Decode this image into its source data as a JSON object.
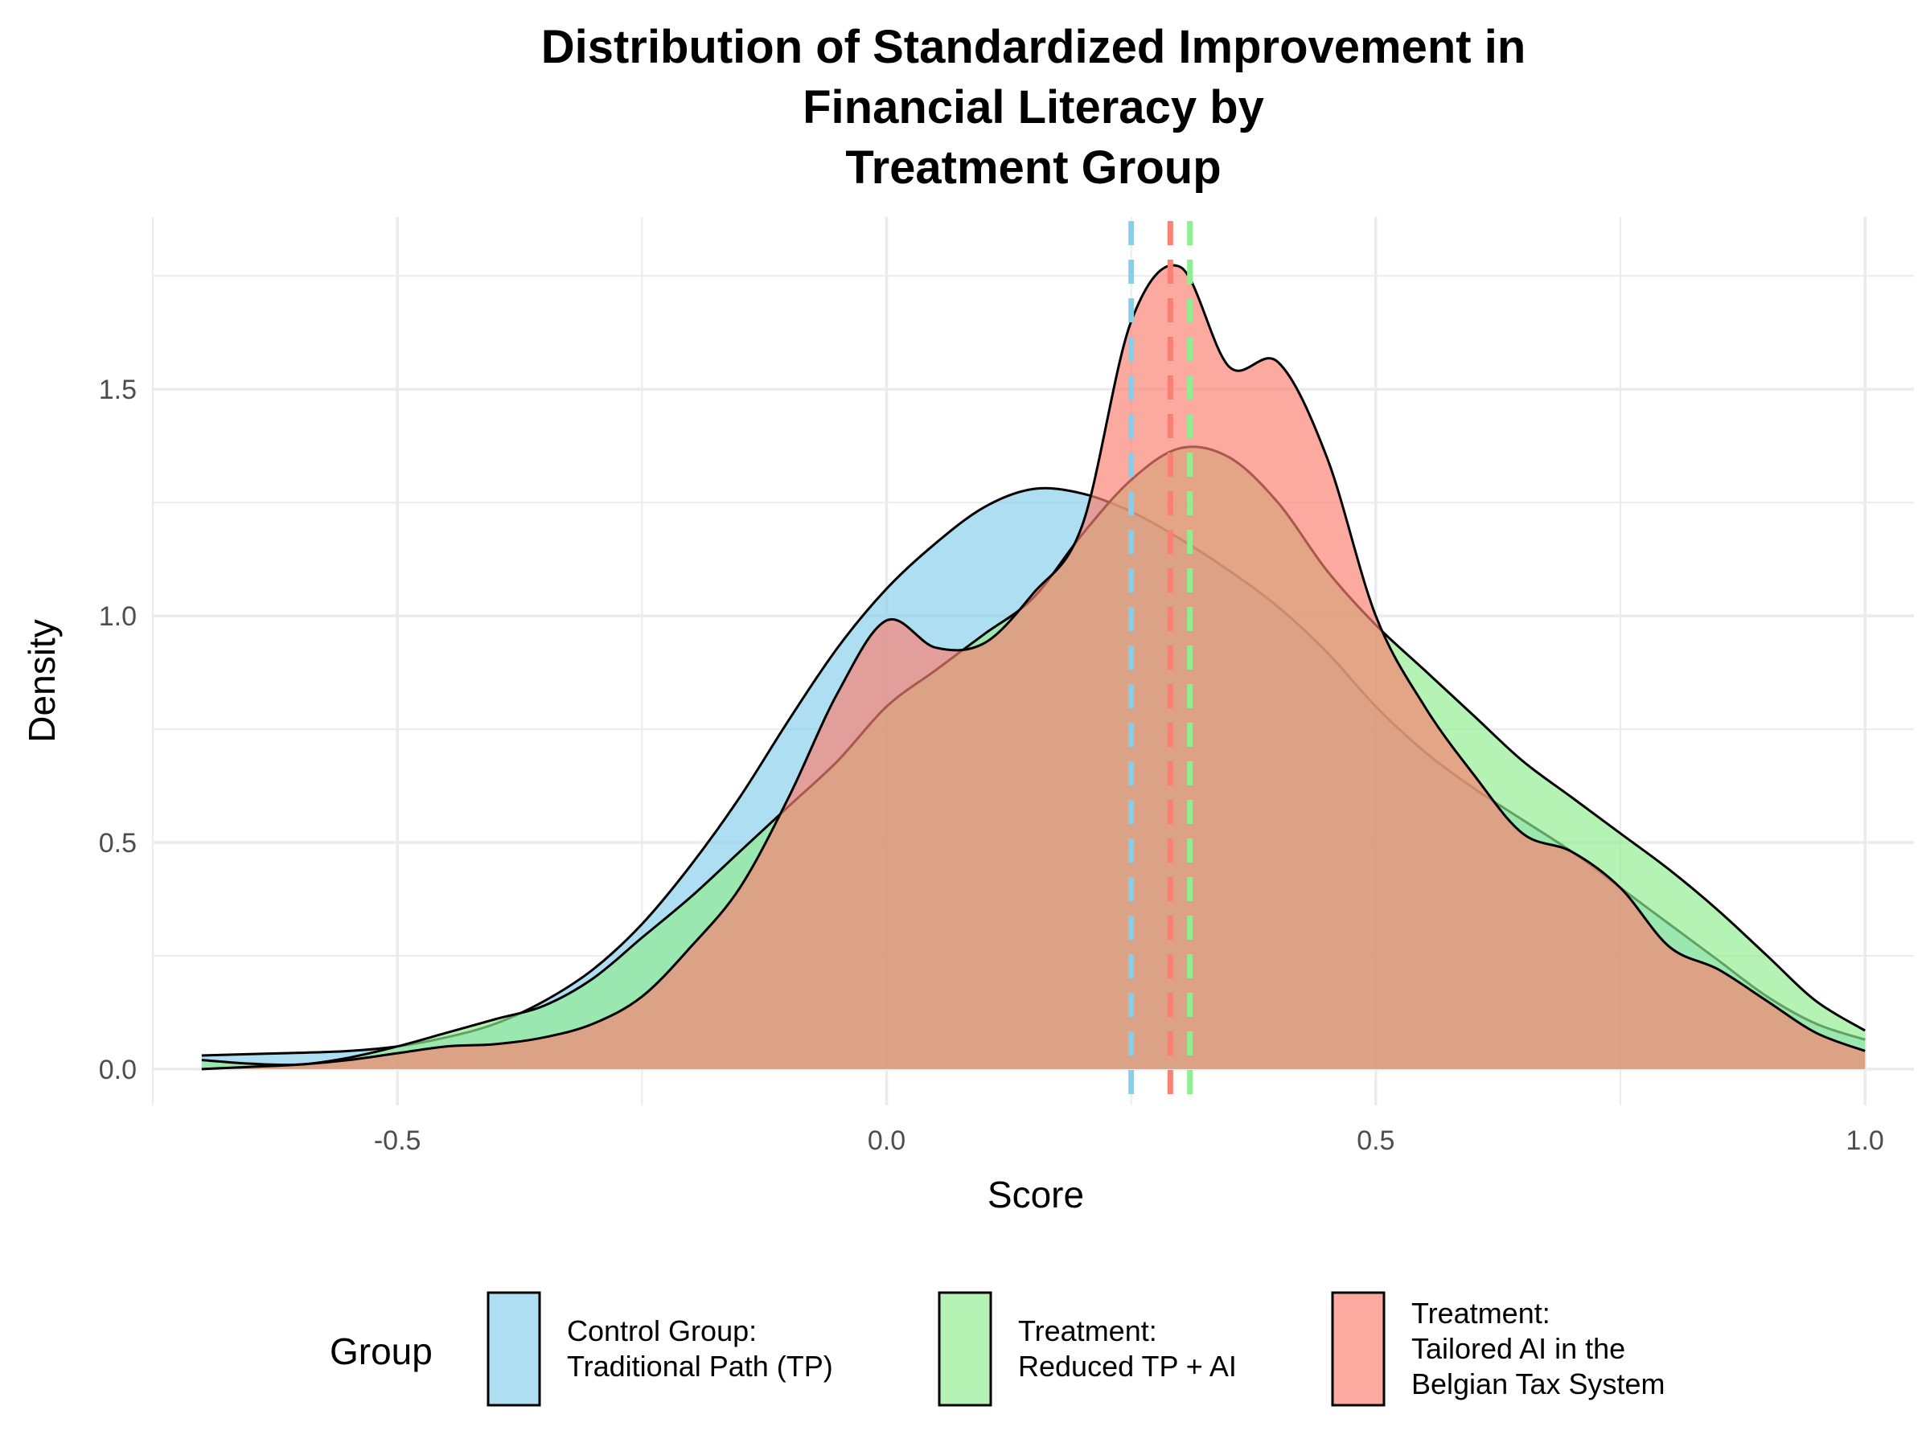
{
  "chart_data": {
    "type": "area",
    "title_lines": [
      "Distribution of Standardized Improvement in",
      "Financial Literacy by",
      "Treatment Group"
    ],
    "xlabel": "Score",
    "ylabel": "Density",
    "xlim": [
      -0.75,
      1.05
    ],
    "ylim": [
      -0.08,
      1.88
    ],
    "x_ticks": [
      -0.5,
      0.0,
      0.5,
      1.0
    ],
    "x_tick_labels": [
      "-0.5",
      "0.0",
      "0.5",
      "1.0"
    ],
    "y_ticks": [
      0.0,
      0.5,
      1.0,
      1.5
    ],
    "y_tick_labels": [
      "0.0",
      "0.5",
      "1.0",
      "1.5"
    ],
    "grid": true,
    "legend_placement": "bottom",
    "legend_title": "Group",
    "series": [
      {
        "name": "Control Group:\nTraditional Path (TP)",
        "color": "#87CEEB",
        "mean": 0.25,
        "x": [
          -0.7,
          -0.65,
          -0.6,
          -0.55,
          -0.5,
          -0.45,
          -0.4,
          -0.35,
          -0.3,
          -0.25,
          -0.2,
          -0.15,
          -0.1,
          -0.05,
          0.0,
          0.05,
          0.1,
          0.15,
          0.2,
          0.25,
          0.3,
          0.35,
          0.4,
          0.45,
          0.5,
          0.55,
          0.6,
          0.65,
          0.7,
          0.75,
          0.8,
          0.85,
          0.9,
          0.95,
          1.0
        ],
        "y": [
          0.03,
          0.033,
          0.036,
          0.04,
          0.05,
          0.07,
          0.1,
          0.15,
          0.22,
          0.32,
          0.45,
          0.6,
          0.77,
          0.93,
          1.06,
          1.16,
          1.24,
          1.28,
          1.27,
          1.23,
          1.17,
          1.1,
          1.02,
          0.92,
          0.8,
          0.7,
          0.62,
          0.55,
          0.48,
          0.4,
          0.32,
          0.24,
          0.16,
          0.1,
          0.065
        ]
      },
      {
        "name": "Treatment:\nReduced TP + AI",
        "color": "#90EE90",
        "mean": 0.31,
        "x": [
          -0.7,
          -0.65,
          -0.6,
          -0.55,
          -0.5,
          -0.45,
          -0.4,
          -0.35,
          -0.3,
          -0.25,
          -0.2,
          -0.15,
          -0.1,
          -0.05,
          0.0,
          0.05,
          0.1,
          0.15,
          0.2,
          0.25,
          0.3,
          0.35,
          0.4,
          0.45,
          0.5,
          0.55,
          0.6,
          0.65,
          0.7,
          0.75,
          0.8,
          0.85,
          0.9,
          0.95,
          1.0
        ],
        "y": [
          0.02,
          0.012,
          0.01,
          0.025,
          0.05,
          0.08,
          0.11,
          0.14,
          0.2,
          0.29,
          0.38,
          0.48,
          0.58,
          0.68,
          0.8,
          0.88,
          0.96,
          1.04,
          1.18,
          1.3,
          1.37,
          1.35,
          1.25,
          1.1,
          0.98,
          0.88,
          0.78,
          0.68,
          0.6,
          0.52,
          0.44,
          0.35,
          0.25,
          0.15,
          0.085
        ]
      },
      {
        "name": "Treatment:\nTailored AI in the\nBelgian Tax System",
        "color": "#FA8072",
        "mean": 0.29,
        "x": [
          -0.7,
          -0.65,
          -0.6,
          -0.55,
          -0.5,
          -0.45,
          -0.4,
          -0.35,
          -0.3,
          -0.25,
          -0.2,
          -0.15,
          -0.1,
          -0.05,
          0.0,
          0.05,
          0.1,
          0.15,
          0.2,
          0.25,
          0.3,
          0.35,
          0.4,
          0.45,
          0.5,
          0.55,
          0.6,
          0.65,
          0.7,
          0.75,
          0.8,
          0.85,
          0.9,
          0.95,
          1.0
        ],
        "y": [
          0.0,
          0.005,
          0.01,
          0.02,
          0.035,
          0.05,
          0.055,
          0.07,
          0.1,
          0.16,
          0.27,
          0.4,
          0.6,
          0.83,
          0.99,
          0.93,
          0.94,
          1.05,
          1.2,
          1.65,
          1.77,
          1.55,
          1.56,
          1.35,
          1.0,
          0.8,
          0.65,
          0.52,
          0.48,
          0.4,
          0.27,
          0.22,
          0.15,
          0.08,
          0.04
        ]
      }
    ]
  }
}
